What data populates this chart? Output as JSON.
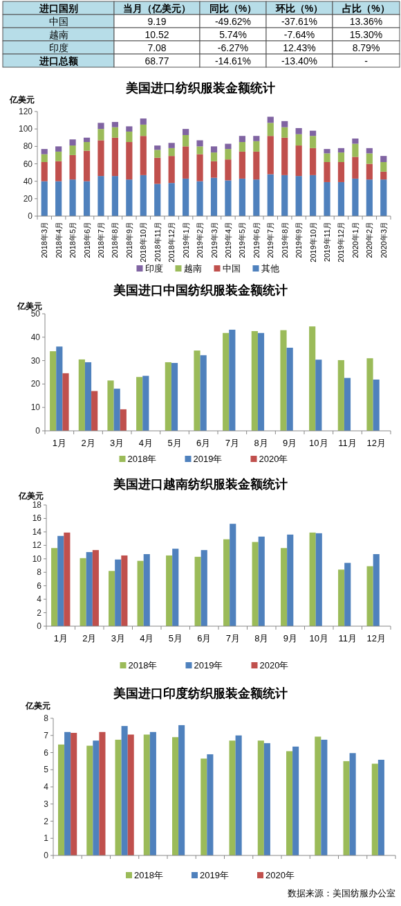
{
  "chart_data": [
    {
      "type": "other",
      "ylabel": "进口国别",
      "categories": [
        "当月（亿美元）",
        "同比（%）",
        "环比（%）",
        "占比（%）"
      ],
      "y_categories": [
        "中国",
        "越南",
        "印度",
        "进口总额"
      ],
      "cell_labels": [
        [
          "9.19",
          "-49.62%",
          "-37.61%",
          "13.36%"
        ],
        [
          "10.52",
          "5.74%",
          "-7.64%",
          "15.30%"
        ],
        [
          "7.08",
          "-6.27%",
          "12.43%",
          "8.79%"
        ],
        [
          "68.77",
          "-14.61%",
          "-13.40%",
          "-"
        ]
      ]
    },
    {
      "type": "bar",
      "stacked": true,
      "title": "美国进口纺织服装金额统计",
      "ylabel": "亿美元",
      "legend": "bottom",
      "categories": [
        "2018年3月",
        "2018年4月",
        "2018年5月",
        "2018年6月",
        "2018年7月",
        "2018年8月",
        "2018年9月",
        "2018年10月",
        "2018年11月",
        "2018年12月",
        "2019年1月",
        "2019年2月",
        "2019年3月",
        "2019年4月",
        "2019年5月",
        "2019年6月",
        "2019年7月",
        "2019年8月",
        "2019年9月",
        "2019年10月",
        "2019年11月",
        "2019年12月",
        "2020年1月",
        "2020年2月",
        "2020年3月"
      ],
      "ylim": [
        0,
        120
      ],
      "yticks": [
        0,
        20,
        40,
        60,
        80,
        100,
        120
      ],
      "series": [
        {
          "name": "其他",
          "color": "#4f81bd",
          "values": [
            40,
            40,
            42,
            40,
            46,
            46,
            42,
            47,
            37,
            38,
            43,
            40,
            44,
            41,
            43,
            42,
            48,
            47,
            46,
            47,
            39,
            39,
            43,
            42,
            42
          ]
        },
        {
          "name": "中国",
          "color": "#c0504d",
          "values": [
            22,
            23,
            28,
            35,
            41,
            44,
            43,
            45,
            30,
            31,
            37,
            31,
            19,
            24,
            31,
            32,
            44,
            43,
            35,
            31,
            23,
            23,
            25,
            18,
            9
          ]
        },
        {
          "name": "越南",
          "color": "#9bbb59",
          "values": [
            9,
            11,
            11,
            10,
            13,
            12,
            12,
            13,
            9,
            9,
            13,
            9,
            10,
            12,
            11,
            12,
            15,
            12,
            13,
            14,
            10,
            11,
            15,
            12,
            11
          ]
        },
        {
          "name": "印度",
          "color": "#8064a2",
          "values": [
            6,
            6,
            7,
            5,
            7,
            6,
            6,
            7,
            5,
            6,
            7,
            7,
            7,
            6,
            7,
            6,
            7,
            7,
            7,
            6,
            5,
            5,
            6,
            6,
            7
          ]
        }
      ]
    },
    {
      "type": "bar",
      "title": "美国进口中国纺织服装金额统计",
      "ylabel": "亿美元",
      "legend": "bottom",
      "categories": [
        "1月",
        "2月",
        "3月",
        "4月",
        "5月",
        "6月",
        "7月",
        "8月",
        "9月",
        "10月",
        "11月",
        "12月"
      ],
      "ylim": [
        0,
        50
      ],
      "yticks": [
        0,
        10,
        20,
        30,
        40,
        50
      ],
      "series": [
        {
          "name": "2018年",
          "color": "#9bbb59",
          "values": [
            34,
            30.5,
            21.5,
            23,
            29.3,
            34.3,
            41.8,
            42.6,
            43,
            44.6,
            30.2,
            31
          ]
        },
        {
          "name": "2019年",
          "color": "#4f81bd",
          "values": [
            36,
            29.3,
            18,
            23.5,
            29,
            32.3,
            43.2,
            41.8,
            35.5,
            30.4,
            22.6,
            21.9
          ]
        },
        {
          "name": "2020年",
          "color": "#c0504d",
          "values": [
            24.6,
            17,
            9.2,
            null,
            null,
            null,
            null,
            null,
            null,
            null,
            null,
            null
          ]
        }
      ]
    },
    {
      "type": "bar",
      "title": "美国进口越南纺织服装金额统计",
      "ylabel": "亿美元",
      "legend": "bottom",
      "categories": [
        "1月",
        "2月",
        "3月",
        "4月",
        "5月",
        "6月",
        "7月",
        "8月",
        "9月",
        "10月",
        "11月",
        "12月"
      ],
      "ylim": [
        0,
        18
      ],
      "yticks": [
        0,
        2,
        4,
        6,
        8,
        10,
        12,
        14,
        16,
        18
      ],
      "series": [
        {
          "name": "2018年",
          "color": "#9bbb59",
          "values": [
            11.6,
            10.1,
            8.2,
            9.7,
            10.5,
            10.3,
            12.9,
            12.5,
            11.6,
            13.9,
            8.4,
            8.9
          ]
        },
        {
          "name": "2019年",
          "color": "#4f81bd",
          "values": [
            13.4,
            11,
            9.9,
            10.7,
            11.5,
            11.3,
            15.2,
            13.3,
            13.6,
            13.8,
            9.4,
            10.7
          ]
        },
        {
          "name": "2020年",
          "color": "#c0504d",
          "values": [
            13.9,
            11.3,
            10.5,
            null,
            null,
            null,
            null,
            null,
            null,
            null,
            null,
            null
          ]
        }
      ]
    },
    {
      "type": "bar",
      "title": "美国进口印度纺织服装金额统计",
      "ylabel": "亿美元",
      "legend": "bottom",
      "categories": [
        null,
        null,
        null,
        null,
        null,
        null,
        null,
        null,
        null,
        null,
        null,
        null
      ],
      "ylim": [
        0,
        8
      ],
      "yticks": [
        0,
        1,
        2,
        3,
        4,
        5,
        6,
        7,
        8
      ],
      "series": [
        {
          "name": "2018年",
          "color": "#9bbb59",
          "values": [
            6.47,
            6.4,
            6.75,
            7.05,
            6.9,
            5.65,
            6.7,
            6.7,
            6.08,
            6.93,
            5.5,
            5.35
          ]
        },
        {
          "name": "2019年",
          "color": "#4f81bd",
          "values": [
            7.2,
            6.7,
            7.55,
            7.2,
            7.6,
            5.9,
            7.0,
            6.55,
            6.35,
            6.75,
            5.97,
            5.58
          ]
        },
        {
          "name": "2020年",
          "color": "#c0504d",
          "values": [
            7.15,
            7.2,
            7.05,
            null,
            null,
            null,
            null,
            null,
            null,
            null,
            null,
            null
          ]
        }
      ],
      "annotations": [
        "数据来源：美国纺服办公室"
      ]
    }
  ]
}
